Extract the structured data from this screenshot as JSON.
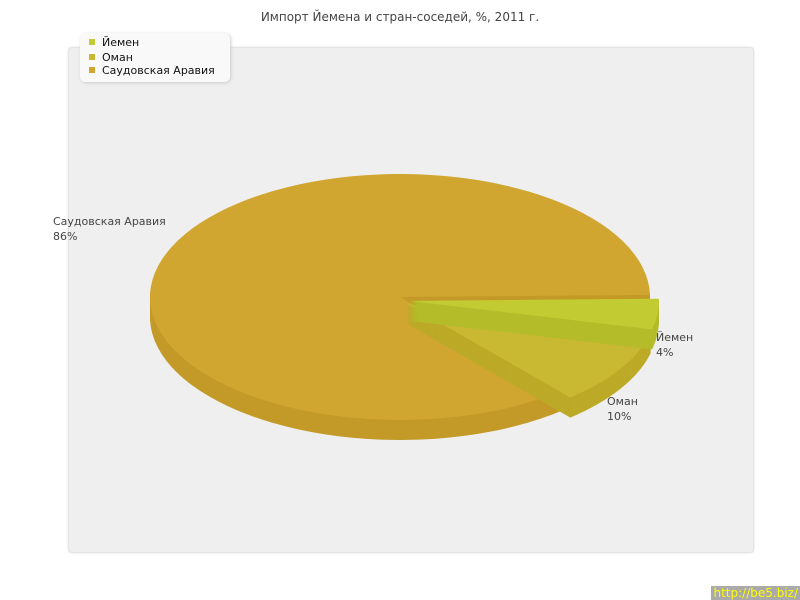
{
  "chart_data": {
    "type": "pie",
    "title": "Импорт Йемена и стран-соседей, %, 2011 г.",
    "legend_position": "top-left",
    "slices": [
      {
        "label": "Йемен",
        "value": 4,
        "value_label": "4%",
        "color": "#c3cb33",
        "side": "#b4bc2a",
        "exploded": true
      },
      {
        "label": "Оман",
        "value": 10,
        "value_label": "10%",
        "color": "#c9b832",
        "side": "#bcaa28",
        "exploded": true
      },
      {
        "label": "Саудовская Аравия",
        "value": 86,
        "value_label": "86%",
        "color": "#d0a530",
        "side": "#c39a28",
        "exploded": false
      }
    ]
  },
  "watermark": "http://be5.biz/"
}
